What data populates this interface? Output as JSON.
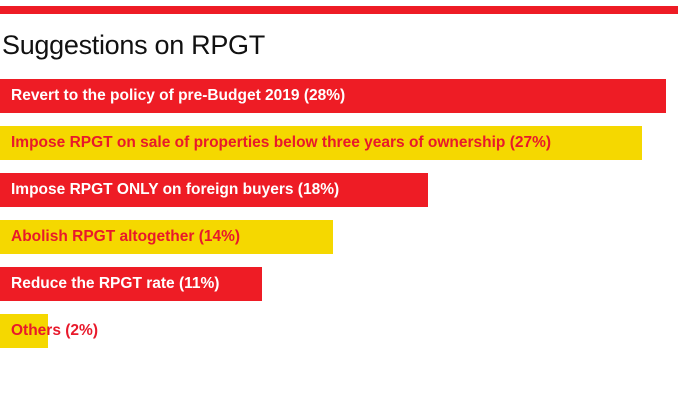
{
  "colors": {
    "red": "#ee1c25",
    "yellow": "#f5d800",
    "label_on_red": "#ffffff",
    "label_on_yellow": "#e8192b"
  },
  "chart_data": {
    "type": "bar",
    "orientation": "horizontal",
    "title": "Suggestions on RPGT",
    "categories": [
      "Revert to the policy of pre-Budget 2019",
      "Impose RPGT on sale of properties below three years of ownership",
      "Impose RPGT ONLY on foreign buyers",
      "Abolish RPGT altogether",
      "Reduce the RPGT rate",
      "Others"
    ],
    "values": [
      28,
      27,
      18,
      14,
      11,
      2
    ],
    "unit": "%",
    "labels": [
      "Revert to the policy of pre-Budget 2019 (28%)",
      "Impose RPGT on sale of properties below three years of ownership (27%)",
      "Impose RPGT ONLY on foreign buyers (18%)",
      "Abolish RPGT altogether (14%)",
      "Reduce the RPGT rate (11%)",
      "Others (2%)"
    ],
    "bar_colors": [
      "red",
      "yellow",
      "red",
      "yellow",
      "red",
      "yellow"
    ],
    "xlim": [
      0,
      28.5
    ],
    "grid": false,
    "legend": "none"
  }
}
